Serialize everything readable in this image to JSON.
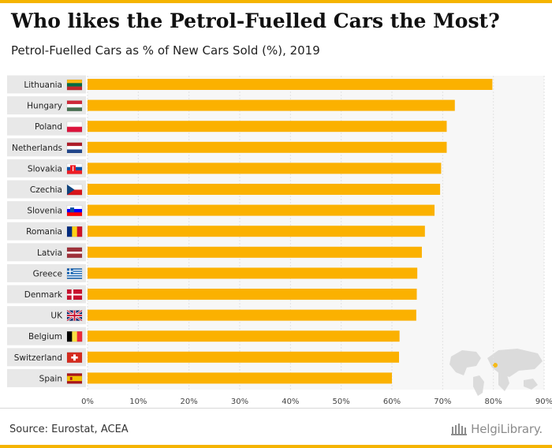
{
  "header": {
    "title": "Who likes the Petrol-Fuelled Cars the Most?",
    "subtitle": "Petrol-Fuelled Cars as % of New Cars Sold (%), 2019"
  },
  "footer": {
    "source": "Source: Eurostat, ACEA",
    "brand": "HelgiLibrary."
  },
  "colors": {
    "bar": "#fbb100",
    "accent": "#f5b400",
    "row_label_bg": "#e8e8e8",
    "plot_bg": "#f7f7f7"
  },
  "chart_data": {
    "type": "bar",
    "orientation": "horizontal",
    "categories": [
      "Lithuania",
      "Hungary",
      "Poland",
      "Netherlands",
      "Slovakia",
      "Czechia",
      "Slovenia",
      "Romania",
      "Latvia",
      "Greece",
      "Denmark",
      "UK",
      "Belgium",
      "Switzerland",
      "Spain"
    ],
    "values": [
      79.8,
      72.4,
      70.8,
      70.8,
      69.7,
      69.5,
      68.4,
      66.5,
      65.9,
      65.0,
      64.9,
      64.8,
      61.5,
      61.4,
      60.0
    ],
    "xlim": [
      0,
      90
    ],
    "xticks": [
      "0%",
      "10%",
      "20%",
      "30%",
      "40%",
      "50%",
      "60%",
      "70%",
      "80%",
      "90%"
    ],
    "grid": true,
    "flags": [
      "lithuania-flag-icon",
      "hungary-flag-icon",
      "poland-flag-icon",
      "netherlands-flag-icon",
      "slovakia-flag-icon",
      "czechia-flag-icon",
      "slovenia-flag-icon",
      "romania-flag-icon",
      "latvia-flag-icon",
      "greece-flag-icon",
      "denmark-flag-icon",
      "uk-flag-icon",
      "belgium-flag-icon",
      "switzerland-flag-icon",
      "spain-flag-icon"
    ]
  }
}
